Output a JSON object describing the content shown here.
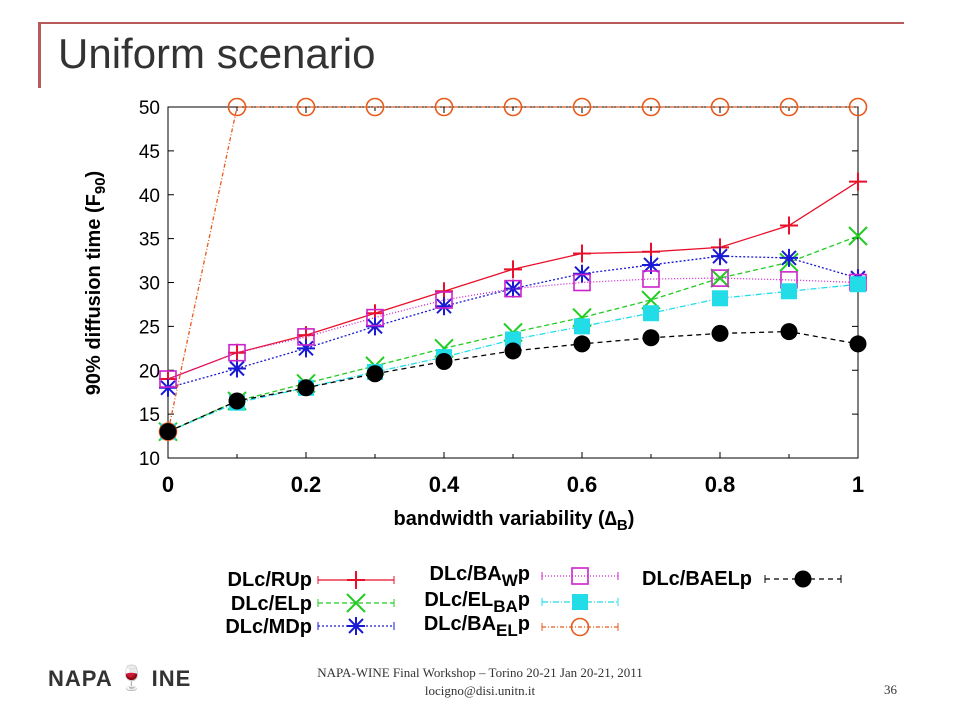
{
  "slide": {
    "title": "Uniform scenario",
    "footer_line1": "NAPA-WINE Final Workshop – Torino 20-21 Jan 20-21, 2011",
    "footer_line2": "locigno@disi.unitn.it",
    "page_number": "36",
    "logo_left": "NAPA",
    "logo_right": "INE",
    "logo_icon": "wine-glass-logo-icon"
  },
  "chart_data": {
    "type": "line",
    "title": "",
    "xlabel": "bandwidth variability (∆",
    "xlabel_sub": "B",
    "ylabel": "90% diffusion time (F",
    "ylabel_sub": "90",
    "xlim": [
      0,
      1
    ],
    "ylim": [
      10,
      50
    ],
    "xticks": [
      "0",
      "0.2",
      "0.4",
      "0.6",
      "0.8",
      "1"
    ],
    "yticks": [
      "10",
      "15",
      "20",
      "25",
      "30",
      "35",
      "40",
      "45",
      "50"
    ],
    "legend_placement": "bottom",
    "series": [
      {
        "name": "DLc/RUp",
        "color": "#e8102a",
        "marker": "plus",
        "dash": "",
        "x": [
          0,
          0.1,
          0.2,
          0.3,
          0.4,
          0.5,
          0.6,
          0.7,
          0.8,
          0.9,
          1
        ],
        "y": [
          19,
          22,
          24,
          26.5,
          29,
          31.5,
          33.3,
          33.5,
          34,
          36.5,
          41.5
        ]
      },
      {
        "name": "DLc/ELp",
        "color": "#22cc22",
        "marker": "cross",
        "dash": "5,3",
        "x": [
          0,
          0.1,
          0.2,
          0.3,
          0.4,
          0.5,
          0.6,
          0.7,
          0.8,
          0.9,
          1
        ],
        "y": [
          13,
          16.5,
          18.5,
          20.5,
          22.5,
          24.3,
          26,
          28,
          30.5,
          32.3,
          35.3
        ]
      },
      {
        "name": "DLc/MDp",
        "color": "#1a1ad4",
        "marker": "asterisk",
        "dash": "2,2",
        "x": [
          0,
          0.1,
          0.2,
          0.3,
          0.4,
          0.5,
          0.6,
          0.7,
          0.8,
          0.9,
          1
        ],
        "y": [
          18,
          20.2,
          22.5,
          25,
          27.3,
          29.3,
          31,
          32,
          33,
          32.8,
          30.5
        ]
      },
      {
        "name": "DLc/BA_Wp",
        "name_main": "DLc/BA",
        "name_sub": "W",
        "name_tail": "p",
        "color": "#cc22cc",
        "marker": "open-square",
        "dash": "1,2",
        "x": [
          0,
          0.1,
          0.2,
          0.3,
          0.4,
          0.5,
          0.6,
          0.7,
          0.8,
          0.9,
          1
        ],
        "y": [
          19,
          22,
          23.8,
          26,
          28,
          29.3,
          30,
          30.4,
          30.5,
          30.3,
          30
        ]
      },
      {
        "name": "DLc/EL_BAp",
        "name_main": "DLc/EL",
        "name_sub": "BA",
        "name_tail": "p",
        "color": "#22dde8",
        "marker": "filled-square",
        "dash": "6,2,1,2",
        "x": [
          0,
          0.1,
          0.2,
          0.3,
          0.4,
          0.5,
          0.6,
          0.7,
          0.8,
          0.9,
          1
        ],
        "y": [
          13,
          16.3,
          18,
          19.8,
          21.5,
          23.5,
          25,
          26.5,
          28.2,
          29,
          29.8
        ]
      },
      {
        "name": "DLc/BA_ELp",
        "name_main": "DLc/BA",
        "name_sub": "EL",
        "name_tail": "p",
        "color": "#e85a1a",
        "marker": "open-circle",
        "dash": "4,2,1,2",
        "x": [
          0,
          0.1,
          0.2,
          0.3,
          0.4,
          0.5,
          0.6,
          0.7,
          0.8,
          0.9,
          1
        ],
        "y": [
          13,
          50,
          50,
          50,
          50,
          50,
          50,
          50,
          50,
          50,
          50
        ]
      },
      {
        "name": "DLc/BAELp",
        "color": "#000000",
        "marker": "filled-circle",
        "dash": "5,4",
        "x": [
          0,
          0.1,
          0.2,
          0.3,
          0.4,
          0.5,
          0.6,
          0.7,
          0.8,
          0.9,
          1
        ],
        "y": [
          13,
          16.5,
          18,
          19.6,
          21,
          22.2,
          23,
          23.7,
          24.2,
          24.4,
          23
        ]
      }
    ]
  }
}
